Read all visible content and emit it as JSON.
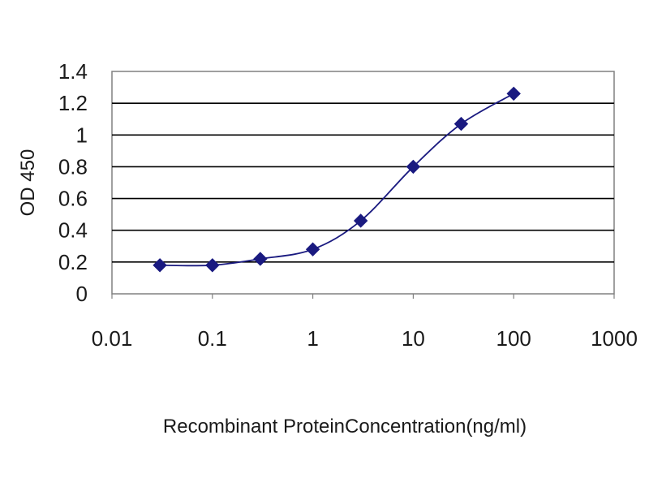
{
  "chart_data": {
    "type": "line",
    "title": "",
    "xlabel": "Recombinant ProteinConcentration(ng/ml)",
    "ylabel": "OD 450",
    "xscale": "log",
    "xlim": [
      0.01,
      1000
    ],
    "ylim": [
      0,
      1.4
    ],
    "x_ticks": [
      "0.01",
      "0.1",
      "1",
      "10",
      "100",
      "1000"
    ],
    "y_ticks": [
      "0",
      "0.2",
      "0.4",
      "0.6",
      "0.8",
      "1",
      "1.2",
      "1.4"
    ],
    "grid": "horizontal",
    "legend": "none",
    "series": [
      {
        "color": "#1a1a80",
        "marker": "diamond",
        "x": [
          0.03,
          0.1,
          0.3,
          1,
          3,
          10,
          30,
          100
        ],
        "y": [
          0.18,
          0.18,
          0.22,
          0.28,
          0.46,
          0.8,
          1.07,
          1.26
        ]
      }
    ]
  }
}
